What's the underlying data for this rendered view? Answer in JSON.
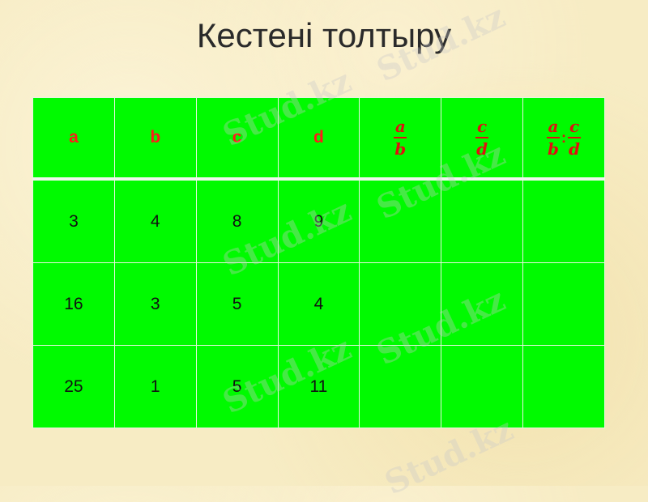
{
  "title": "Кестені толтыру",
  "table": {
    "headers": [
      "a",
      "b",
      "c",
      "d"
    ],
    "fractions": {
      "ab": {
        "num": "a",
        "den": "b"
      },
      "cd": {
        "num": "c",
        "den": "d"
      },
      "ratio": {
        "num1": "a",
        "den1": "b",
        "op": ":",
        "num2": "c",
        "den2": "d"
      }
    },
    "rows": [
      [
        "3",
        "4",
        "8",
        "9",
        "",
        "",
        ""
      ],
      [
        "16",
        "3",
        "5",
        "4",
        "",
        "",
        ""
      ],
      [
        "25",
        "1",
        "5",
        "11",
        "",
        "",
        ""
      ]
    ]
  },
  "watermark": "Stud.kz",
  "colors": {
    "cell": "#00fa00",
    "header_text": "#ff1a1a"
  }
}
